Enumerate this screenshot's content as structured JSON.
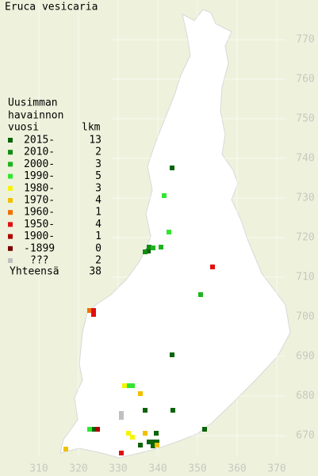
{
  "chart_data": {
    "type": "scatter",
    "title": "Eruca vesicaria",
    "legend_title": [
      "Uusimman",
      "havainnon",
      "vuosi"
    ],
    "count_header": "lkm",
    "total_label": "Yhteensä",
    "total": 38,
    "xlim": [
      300.2,
      380.4
    ],
    "ylim": [
      659.8,
      780
    ],
    "xticks": [
      310,
      320,
      330,
      340,
      350,
      360,
      370
    ],
    "yticks": [
      670,
      680,
      690,
      700,
      710,
      720,
      730,
      740,
      750,
      760,
      770
    ],
    "grid": true,
    "series": [
      {
        "name": "2015-",
        "color": "#0a640a",
        "count": 13,
        "x": [
          343.6,
          337.6,
          343.6,
          336.8,
          343.8,
          351.8,
          339.6,
          335.6,
          337.8,
          338.8,
          338.8,
          339.8,
          323.8
        ],
        "y": [
          737.6,
          716.6,
          690.4,
          676.4,
          676.4,
          671.6,
          670.6,
          667.6,
          668.4,
          668.4,
          667.4,
          668.4,
          671.6
        ]
      },
      {
        "name": "2010-",
        "color": "#148c14",
        "count": 2,
        "x": [
          337.8,
          336.8
        ],
        "y": [
          717.6,
          716.4
        ]
      },
      {
        "name": "2000-",
        "color": "#1eb41e",
        "count": 3,
        "x": [
          338.8,
          340.8,
          350.8
        ],
        "y": [
          717.4,
          717.6,
          705.6
        ]
      },
      {
        "name": "1990-",
        "color": "#32e632",
        "count": 5,
        "x": [
          341.6,
          342.8,
          332.6,
          333.6,
          322.8
        ],
        "y": [
          730.6,
          721.4,
          682.6,
          682.6,
          671.6
        ]
      },
      {
        "name": "1980-",
        "color": "#f5f500",
        "count": 3,
        "x": [
          331.6,
          332.6,
          333.6
        ],
        "y": [
          682.6,
          670.6,
          669.6
        ]
      },
      {
        "name": "1970-",
        "color": "#f0c000",
        "count": 4,
        "x": [
          335.6,
          336.8,
          339.8,
          316.8
        ],
        "y": [
          680.6,
          670.6,
          667.6,
          666.6
        ]
      },
      {
        "name": "1960-",
        "color": "#f07000",
        "count": 1,
        "x": [
          322.8
        ],
        "y": [
          701.6
        ]
      },
      {
        "name": "1950-",
        "color": "#e01010",
        "count": 4,
        "x": [
          323.8,
          323.8,
          353.8,
          330.8
        ],
        "y": [
          701.6,
          700.6,
          712.6,
          665.6
        ]
      },
      {
        "name": "1900-",
        "color": "#b00000",
        "count": 1,
        "x": [
          324.8
        ],
        "y": [
          671.6
        ]
      },
      {
        "name": "-1899",
        "color": "#780000",
        "count": 0,
        "x": [],
        "y": []
      },
      {
        "name": "???",
        "color": "#c0c0c0",
        "count": 2,
        "x": [
          330.8,
          330.8
        ],
        "y": [
          675.6,
          674.6
        ]
      }
    ]
  }
}
